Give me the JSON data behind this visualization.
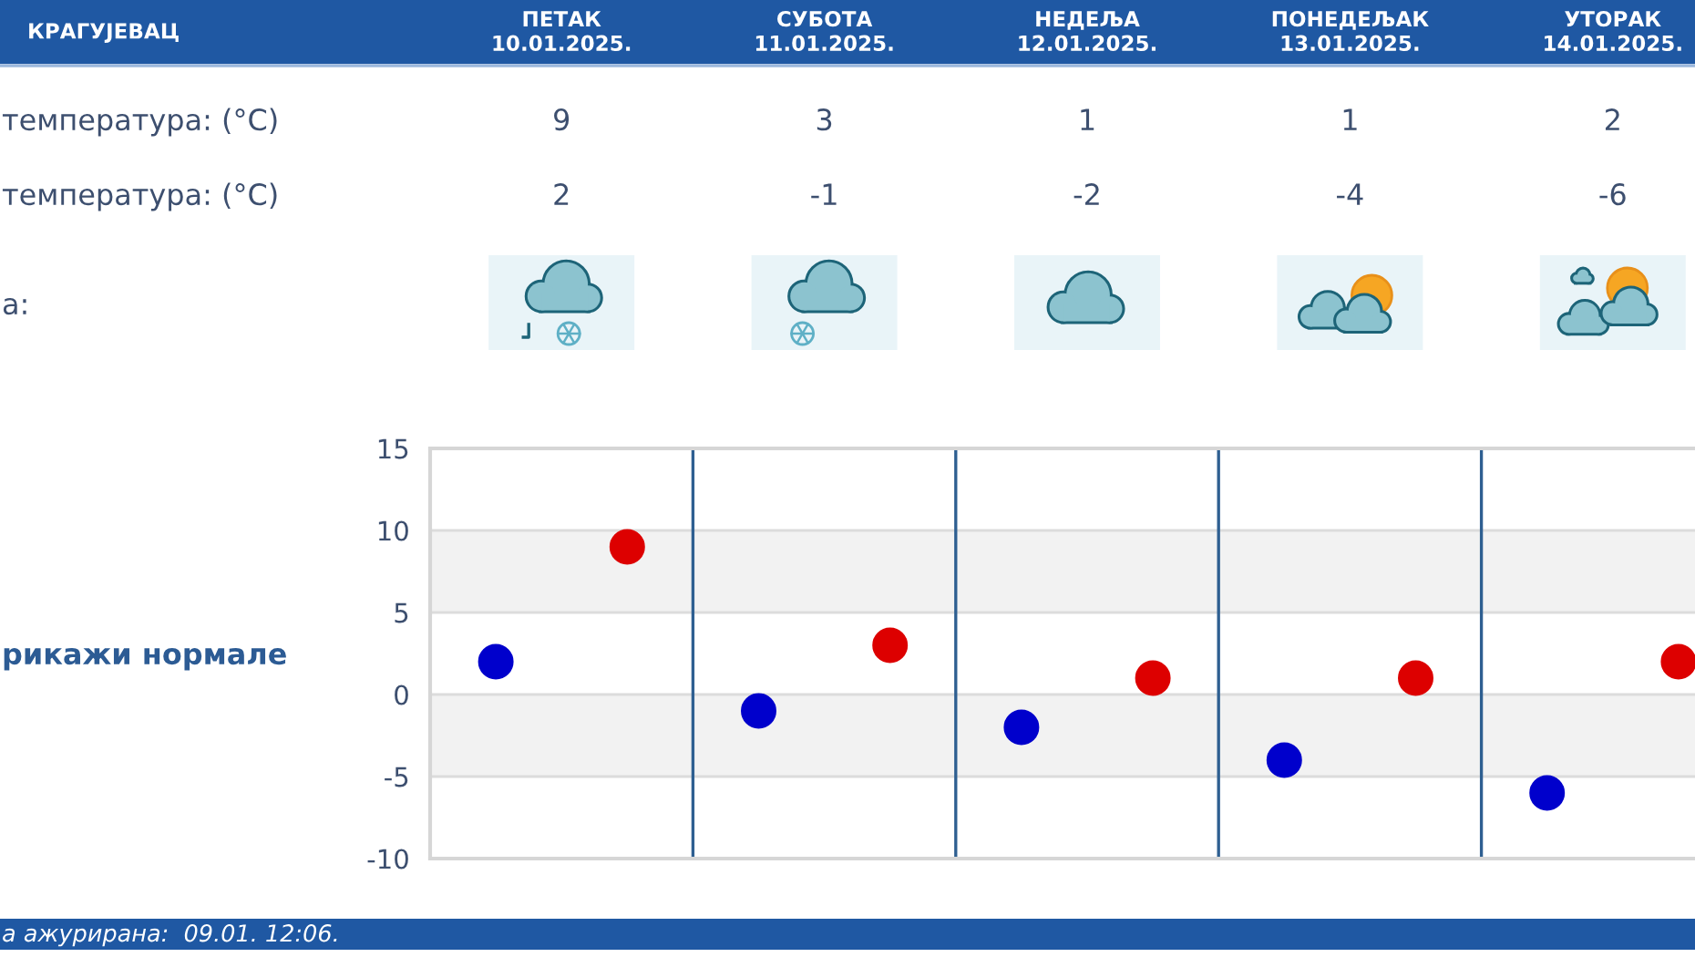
{
  "chart_data": {
    "type": "scatter",
    "title": "КРАГУЈЕВАЦ",
    "categories": [
      null,
      null,
      null,
      null,
      null
    ],
    "series": [
      {
        "color": "#0000cc",
        "values": [
          2,
          -1,
          -2,
          -4,
          -6
        ]
      },
      {
        "color": "#dd0000",
        "values": [
          9,
          3,
          1,
          1,
          2
        ]
      }
    ],
    "ylim": [
      -10,
      15
    ],
    "yticks": [
      -10,
      -5,
      0,
      5,
      10,
      15
    ],
    "grid": "y",
    "marker": "circle",
    "data_labels": true,
    "bands": [
      {
        "axis": "y",
        "from": 5,
        "to": 10,
        "color": "#f2f2f2"
      },
      {
        "axis": "y",
        "from": -5,
        "to": 0,
        "color": "#f2f2f2"
      }
    ],
    "annotations": [
      "ПЕТАК\n10.01.2025.",
      "СУБОТА\n11.01.2025.",
      "НЕДЕЉА\n12.01.2025.",
      "ПОНЕДЕЉАК\n13.01.2025.",
      "УТОРАК\n14.01.2025.",
      "температура: (°C)",
      "температура: (°C)",
      "а:",
      "рикажи нормале",
      "а ажурирана:  09.01. 12:06."
    ]
  }
}
